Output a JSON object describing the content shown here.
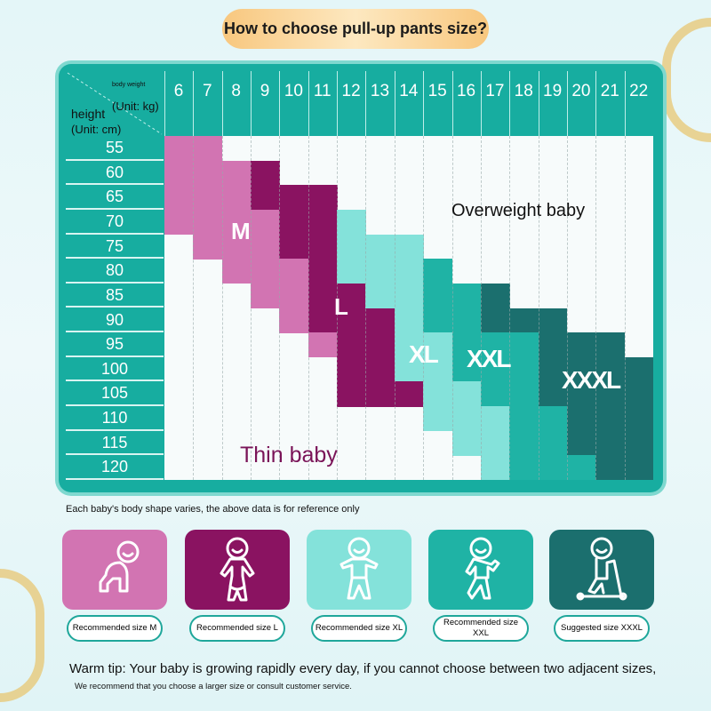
{
  "title": "How to choose pull-up pants size?",
  "table": {
    "weight_label": "body weight",
    "weight_unit": "(Unit: kg)",
    "height_label": "height",
    "height_unit": "(Unit: cm)",
    "weights": [
      "6",
      "7",
      "8",
      "9",
      "10",
      "11",
      "12",
      "13",
      "14",
      "15",
      "16",
      "17",
      "18",
      "19",
      "20",
      "21",
      "22"
    ],
    "heights": [
      "55",
      "60",
      "65",
      "70",
      "75",
      "80",
      "85",
      "90",
      "95",
      "100",
      "105",
      "110",
      "115",
      "120"
    ],
    "size_by_weight_column": [
      "M M M M . . . . . . . . . .",
      "M M M M M . . . . . . . . .",
      ". M M M M M . . . . . . . .",
      ". L L M M M M . . . . . . .",
      ". . L L L M M M . . . . . .",
      ". . L L L L L L M . . . . .",
      ". . . XL XL XL L L L L L . . .",
      ". . . . XL XL XL L L L L . . .",
      ". . . . XL XL XL XL XL XL L . . .",
      ". . . . . XXL XXL XXL XL XL XL XL . .",
      ". . . . . . XXL XXL XXL XXL XL XL XL .",
      ". . . . . . XXXL XXXL XXL XXL XXL XL XL XL",
      ". . . . . . . XXXL XXL XXL XXL XXL XXL XXL",
      ". . . . . . . XXXL XXXL XXXL XXXL XXL XXL XXL",
      ". . . . . . . . XXXL XXXL XXXL XXXL XXXL XXL",
      ". . . . . . . . XXXL XXXL XXXL XXXL XXXL XXXL",
      ". . . . . . . . . XXXL XXXL XXXL XXXL XXXL"
    ],
    "size_colors": {
      "M": "#d274b2",
      "L": "#8a1361",
      "XL": "#84e2da",
      "XXL": "#1fb3a5",
      "XXXL": "#1b6f6e"
    },
    "labels": {
      "M": "M",
      "L": "L",
      "XL": "XL",
      "XXL": "XXL",
      "XXXL": "XXXL",
      "overweight": "Overweight baby",
      "thin": "Thin baby"
    }
  },
  "note": "Each baby's body shape varies, the above data is for reference only",
  "cards": [
    {
      "label": "Recommended size M",
      "icon": "crawling-baby-icon",
      "color": "#d274b2"
    },
    {
      "label": "Recommended size L",
      "icon": "standing-baby-icon",
      "color": "#8a1361"
    },
    {
      "label": "Recommended size XL",
      "icon": "toddler-baby-icon",
      "color": "#84e2da"
    },
    {
      "label": "Recommended size XXL",
      "icon": "walking-baby-icon",
      "color": "#1fb3a5"
    },
    {
      "label": "Suggested size XXXL",
      "icon": "scooter-baby-icon",
      "color": "#1b6f6e"
    }
  ],
  "tip": "Warm tip: Your baby is growing rapidly every day, if you cannot choose between two adjacent sizes,",
  "tip2": "We recommend that you choose a larger size or consult customer service."
}
